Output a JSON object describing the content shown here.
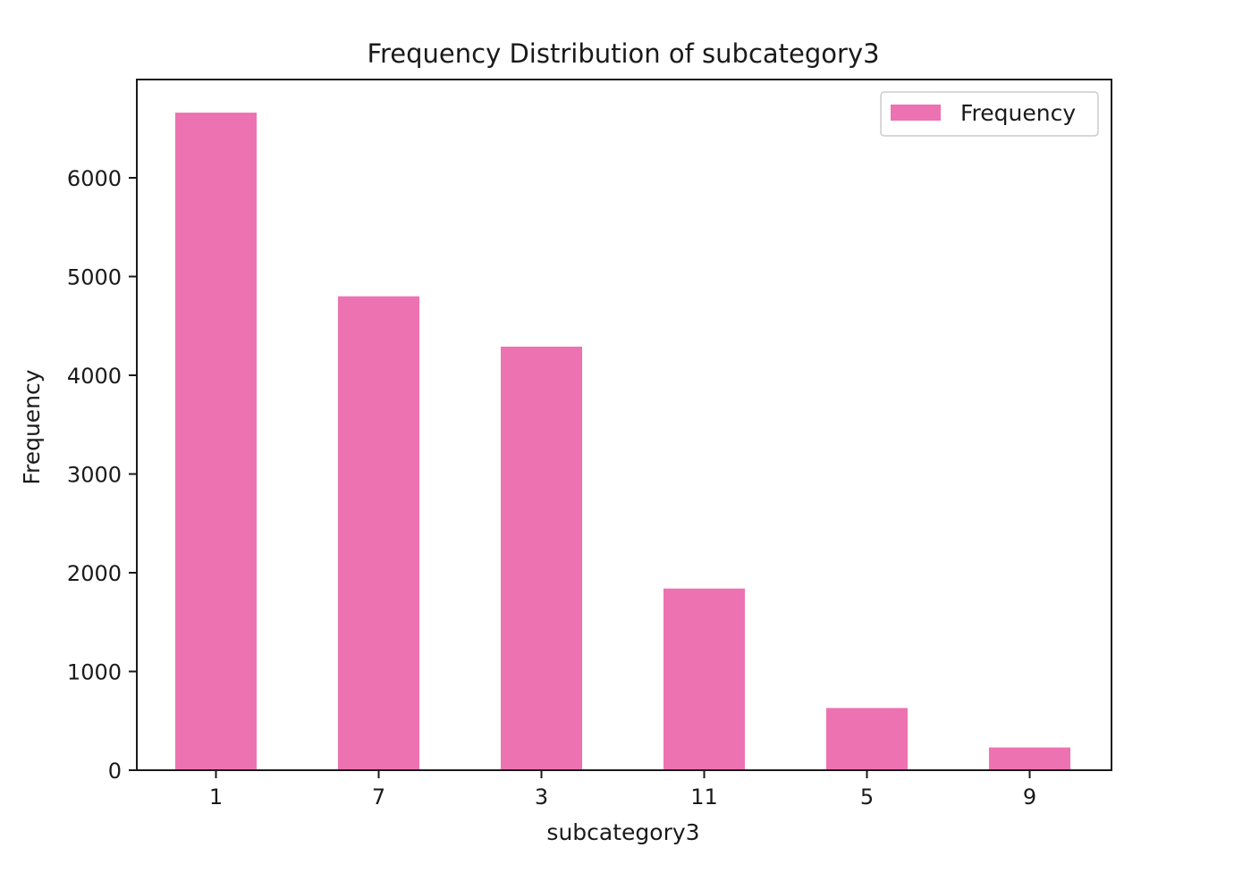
{
  "chart_data": {
    "type": "bar",
    "title": "Frequency Distribution of subcategory3",
    "xlabel": "subcategory3",
    "ylabel": "Frequency",
    "categories": [
      "1",
      "7",
      "3",
      "11",
      "5",
      "9"
    ],
    "series": [
      {
        "name": "Frequency",
        "values": [
          6660,
          4800,
          4290,
          1840,
          630,
          230
        ]
      }
    ],
    "ylim": [
      0,
      7000
    ],
    "yticks": [
      0,
      1000,
      2000,
      3000,
      4000,
      5000,
      6000
    ],
    "grid": false,
    "legend_position": "top-right",
    "colors": {
      "bar": "#ed72b1",
      "axis": "#1a1a1a",
      "legend_border": "#cccccc"
    }
  }
}
